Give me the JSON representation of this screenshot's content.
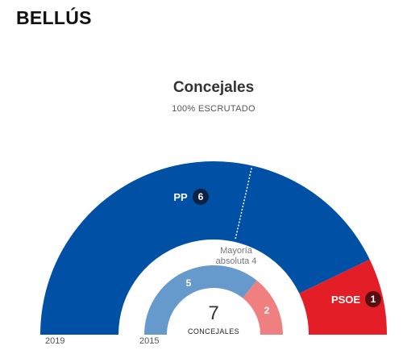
{
  "page": {
    "title": "BELLÚS"
  },
  "chart_data": {
    "type": "pie",
    "title": "Concejales",
    "subtitle": "100% ESCRUTADO",
    "total": "7",
    "total_label": "CONCEJALES",
    "majority_label_line1": "Mayoría",
    "majority_label_line2": "absoluta 4",
    "majority": 4,
    "series": [
      {
        "name": "2019",
        "slices": [
          {
            "party": "PP",
            "seats": 6,
            "color": "#0050a5",
            "badge": "#0b2245"
          },
          {
            "party": "PSOE",
            "seats": 1,
            "color": "#e41e26",
            "badge": "#5a0d10"
          }
        ]
      },
      {
        "name": "2015",
        "slices": [
          {
            "party": "PP",
            "seats": 5,
            "color": "#6699cc"
          },
          {
            "party": "PSOE",
            "seats": 2,
            "color": "#f08080"
          }
        ]
      }
    ]
  }
}
